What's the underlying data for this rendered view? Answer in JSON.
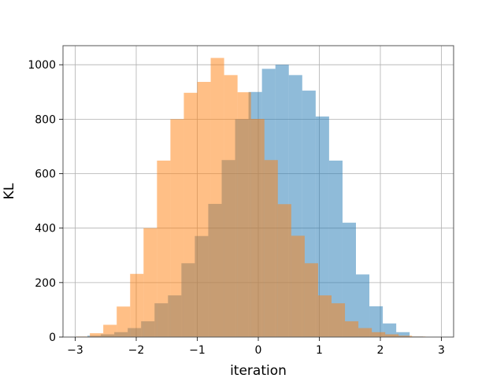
{
  "chart_data": {
    "type": "histogram",
    "title": "",
    "xlabel": "iteration",
    "ylabel": "KL",
    "xlim": [
      -3.2,
      3.2
    ],
    "ylim": [
      0,
      1070
    ],
    "xticks": [
      -3,
      -2,
      -1,
      0,
      1,
      2,
      3
    ],
    "yticks": [
      0,
      200,
      400,
      600,
      800,
      1000
    ],
    "grid": true,
    "series": [
      {
        "color": "#1f77b4",
        "alpha": 0.5,
        "bin_edges": [
          -2.8,
          -2.58,
          -2.36,
          -2.14,
          -1.92,
          -1.7,
          -1.48,
          -1.26,
          -1.04,
          -0.82,
          -0.6,
          -0.38,
          -0.16,
          0.06,
          0.28,
          0.5,
          0.72,
          0.94,
          1.16,
          1.38,
          1.6,
          1.82,
          2.04,
          2.26,
          2.48,
          2.7
        ],
        "counts": [
          5,
          10,
          18,
          33,
          58,
          124,
          153,
          271,
          371,
          489,
          650,
          800,
          900,
          985,
          1000,
          962,
          905,
          810,
          648,
          420,
          230,
          113,
          50,
          18,
          2
        ]
      },
      {
        "color": "#ff7f0e",
        "alpha": 0.5,
        "bin_edges": [
          -2.98,
          -2.76,
          -2.54,
          -2.32,
          -2.1,
          -1.88,
          -1.66,
          -1.44,
          -1.22,
          -1.0,
          -0.78,
          -0.56,
          -0.34,
          -0.12,
          0.1,
          0.32,
          0.54,
          0.76,
          0.98,
          1.2,
          1.42,
          1.64,
          1.86,
          2.08,
          2.3,
          2.52,
          2.74,
          2.96
        ],
        "counts": [
          2,
          14,
          45,
          112,
          232,
          400,
          648,
          800,
          897,
          937,
          1025,
          962,
          899,
          801,
          650,
          488,
          372,
          271,
          153,
          124,
          58,
          33,
          18,
          10,
          5,
          2,
          1
        ]
      }
    ]
  }
}
